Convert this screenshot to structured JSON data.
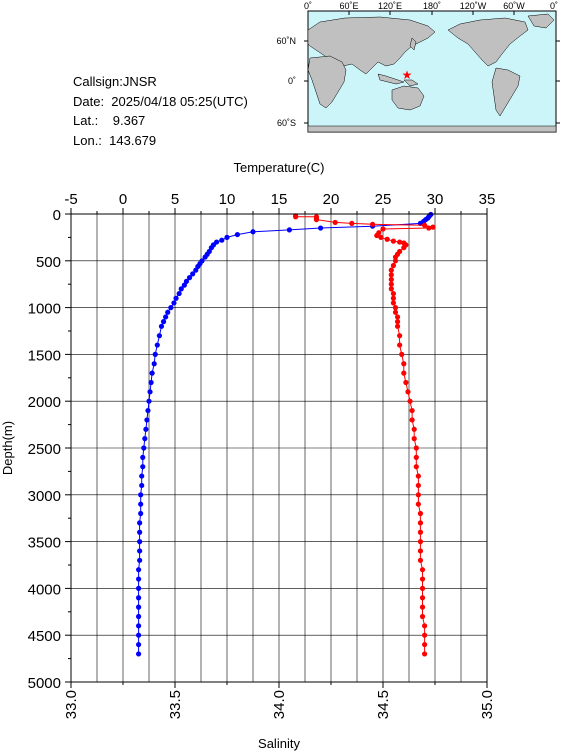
{
  "info": {
    "callsign": "Callsign:JNSR",
    "date": "Date:  2025/04/18 05:25(UTC)",
    "lat": "Lat.:    9.367",
    "lon": "Lon.:  143.679"
  },
  "map": {
    "lon_labels": [
      "0˚",
      "60˚E",
      "120˚E",
      "180˚",
      "120˚W",
      "60˚W",
      "0˚"
    ],
    "lat_labels": [
      "60˚N",
      "0˚",
      "60˚S"
    ],
    "station": {
      "lon": 143.679,
      "lat": 9.367
    },
    "colors": {
      "ocean": "#ccf5fa",
      "land": "#c0c0c0",
      "marker": "#ff0000"
    }
  },
  "chart_data": {
    "type": "line",
    "top_axis": {
      "label": "Temperature(C)",
      "range": [
        -5,
        35
      ],
      "ticks": [
        "-5",
        "0",
        "5",
        "10",
        "15",
        "20",
        "25",
        "30",
        "35"
      ]
    },
    "bottom_axis": {
      "label": "Salinity",
      "range": [
        33.0,
        35.0
      ],
      "ticks": [
        "33.0",
        "33.5",
        "34.0",
        "34.5",
        "35.0"
      ]
    },
    "y_axis": {
      "label": "Depth(m)",
      "range": [
        0,
        5000
      ],
      "inverted": true,
      "ticks": [
        "0",
        "500",
        "1000",
        "1500",
        "2000",
        "2500",
        "3000",
        "3500",
        "4000",
        "4500",
        "5000"
      ]
    },
    "grid": true,
    "series": [
      {
        "axis": "temperature",
        "color": "#0000ff",
        "points": [
          [
            29.6,
            5
          ],
          [
            29.5,
            15
          ],
          [
            29.4,
            30
          ],
          [
            29.3,
            45
          ],
          [
            29.1,
            60
          ],
          [
            28.9,
            80
          ],
          [
            28.6,
            100
          ],
          [
            24.0,
            130
          ],
          [
            19.0,
            150
          ],
          [
            16.0,
            170
          ],
          [
            12.5,
            190
          ],
          [
            11.0,
            220
          ],
          [
            10.0,
            250
          ],
          [
            9.5,
            280
          ],
          [
            9.0,
            300
          ],
          [
            8.7,
            330
          ],
          [
            8.5,
            360
          ],
          [
            8.3,
            400
          ],
          [
            8.1,
            430
          ],
          [
            7.9,
            460
          ],
          [
            7.6,
            500
          ],
          [
            7.4,
            530
          ],
          [
            7.2,
            560
          ],
          [
            7.0,
            600
          ],
          [
            6.7,
            640
          ],
          [
            6.4,
            680
          ],
          [
            6.1,
            720
          ],
          [
            5.9,
            760
          ],
          [
            5.6,
            800
          ],
          [
            5.4,
            850
          ],
          [
            5.1,
            900
          ],
          [
            4.9,
            950
          ],
          [
            4.6,
            1000
          ],
          [
            4.3,
            1050
          ],
          [
            4.1,
            1100
          ],
          [
            3.9,
            1150
          ],
          [
            3.7,
            1200
          ],
          [
            3.5,
            1300
          ],
          [
            3.3,
            1400
          ],
          [
            3.1,
            1500
          ],
          [
            3.0,
            1600
          ],
          [
            2.8,
            1700
          ],
          [
            2.7,
            1800
          ],
          [
            2.6,
            1900
          ],
          [
            2.5,
            2000
          ],
          [
            2.4,
            2100
          ],
          [
            2.3,
            2200
          ],
          [
            2.2,
            2300
          ],
          [
            2.1,
            2400
          ],
          [
            2.0,
            2500
          ],
          [
            1.9,
            2600
          ],
          [
            1.9,
            2700
          ],
          [
            1.8,
            2800
          ],
          [
            1.8,
            2900
          ],
          [
            1.7,
            3000
          ],
          [
            1.7,
            3100
          ],
          [
            1.7,
            3200
          ],
          [
            1.6,
            3300
          ],
          [
            1.6,
            3400
          ],
          [
            1.6,
            3500
          ],
          [
            1.6,
            3600
          ],
          [
            1.6,
            3700
          ],
          [
            1.5,
            3800
          ],
          [
            1.5,
            3900
          ],
          [
            1.5,
            4000
          ],
          [
            1.5,
            4100
          ],
          [
            1.5,
            4200
          ],
          [
            1.5,
            4300
          ],
          [
            1.5,
            4400
          ],
          [
            1.5,
            4500
          ],
          [
            1.5,
            4600
          ],
          [
            1.5,
            4700
          ]
        ]
      },
      {
        "axis": "salinity",
        "color": "#ff0000",
        "points": [
          [
            34.08,
            20
          ],
          [
            34.08,
            30
          ],
          [
            34.18,
            30
          ],
          [
            34.18,
            50
          ],
          [
            34.18,
            60
          ],
          [
            34.27,
            90
          ],
          [
            34.35,
            100
          ],
          [
            34.45,
            110
          ],
          [
            34.7,
            120
          ],
          [
            34.74,
            140
          ],
          [
            34.72,
            150
          ],
          [
            34.5,
            160
          ],
          [
            34.48,
            200
          ],
          [
            34.47,
            230
          ],
          [
            34.49,
            250
          ],
          [
            34.52,
            270
          ],
          [
            34.55,
            290
          ],
          [
            34.58,
            300
          ],
          [
            34.6,
            310
          ],
          [
            34.61,
            330
          ],
          [
            34.6,
            360
          ],
          [
            34.58,
            400
          ],
          [
            34.57,
            430
          ],
          [
            34.56,
            460
          ],
          [
            34.56,
            500
          ],
          [
            34.55,
            550
          ],
          [
            34.54,
            600
          ],
          [
            34.54,
            650
          ],
          [
            34.54,
            700
          ],
          [
            34.54,
            750
          ],
          [
            34.54,
            800
          ],
          [
            34.55,
            850
          ],
          [
            34.55,
            900
          ],
          [
            34.55,
            950
          ],
          [
            34.56,
            1000
          ],
          [
            34.56,
            1050
          ],
          [
            34.57,
            1100
          ],
          [
            34.57,
            1150
          ],
          [
            34.57,
            1200
          ],
          [
            34.58,
            1300
          ],
          [
            34.58,
            1400
          ],
          [
            34.59,
            1500
          ],
          [
            34.6,
            1600
          ],
          [
            34.6,
            1700
          ],
          [
            34.61,
            1800
          ],
          [
            34.62,
            1900
          ],
          [
            34.63,
            2000
          ],
          [
            34.64,
            2100
          ],
          [
            34.64,
            2200
          ],
          [
            34.65,
            2300
          ],
          [
            34.65,
            2400
          ],
          [
            34.66,
            2500
          ],
          [
            34.66,
            2600
          ],
          [
            34.66,
            2700
          ],
          [
            34.67,
            2800
          ],
          [
            34.67,
            2900
          ],
          [
            34.67,
            3000
          ],
          [
            34.67,
            3100
          ],
          [
            34.68,
            3200
          ],
          [
            34.68,
            3300
          ],
          [
            34.68,
            3400
          ],
          [
            34.68,
            3500
          ],
          [
            34.68,
            3600
          ],
          [
            34.68,
            3700
          ],
          [
            34.69,
            3800
          ],
          [
            34.69,
            3900
          ],
          [
            34.69,
            4000
          ],
          [
            34.69,
            4100
          ],
          [
            34.69,
            4200
          ],
          [
            34.69,
            4300
          ],
          [
            34.7,
            4400
          ],
          [
            34.7,
            4500
          ],
          [
            34.7,
            4600
          ],
          [
            34.7,
            4700
          ]
        ]
      }
    ]
  }
}
